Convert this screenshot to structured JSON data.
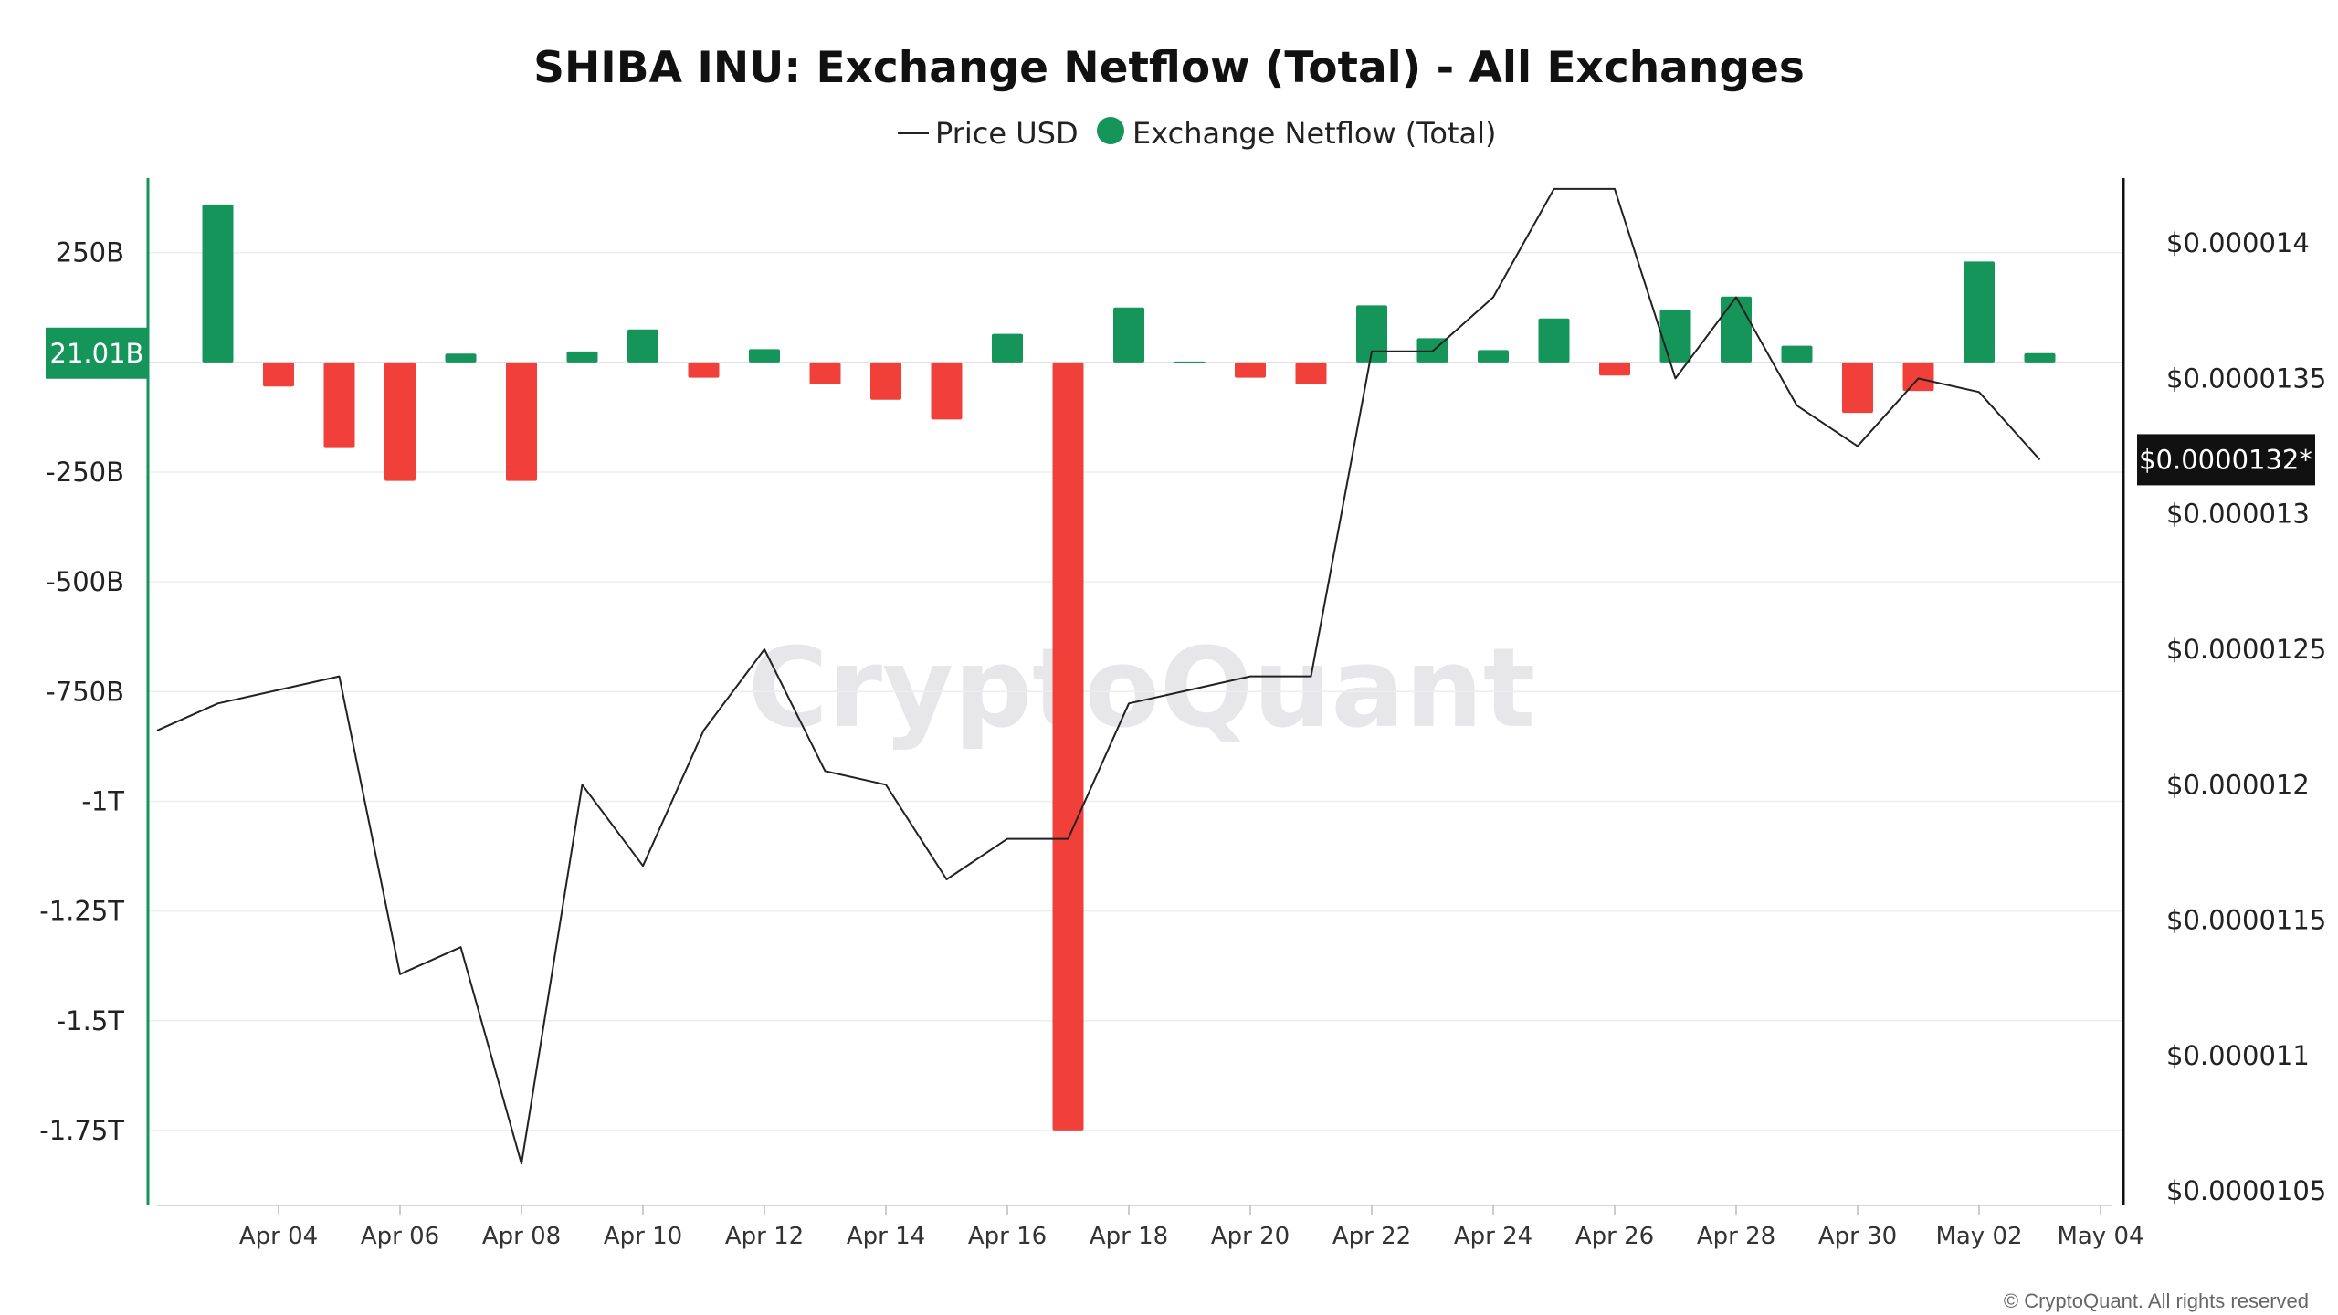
{
  "page": {
    "title": "SHIBA INU: Exchange Netflow (Total) - All Exchanges",
    "watermark": "CryptoQuant",
    "copyright": "© CryptoQuant. All rights reserved"
  },
  "legend": {
    "price_label": "Price USD",
    "netflow_label": "Exchange Netflow (Total)"
  },
  "colors": {
    "positive": "#16955a",
    "negative": "#f1403a",
    "price_line": "#222222",
    "left_axis": "#16955a",
    "right_axis": "#111111",
    "grid": "#eeeeee",
    "current_badge": "#111111"
  },
  "badges": {
    "current_netflow": "21.01B",
    "current_price": "$0.0000132*"
  },
  "chart_data": {
    "type": "bar",
    "title": "SHIBA INU: Exchange Netflow (Total) - All Exchanges",
    "grid": true,
    "legend_position": "top-center",
    "x": [
      "2024-04-03",
      "2024-04-04",
      "2024-04-05",
      "2024-04-06",
      "2024-04-07",
      "2024-04-08",
      "2024-04-09",
      "2024-04-10",
      "2024-04-11",
      "2024-04-12",
      "2024-04-13",
      "2024-04-14",
      "2024-04-15",
      "2024-04-16",
      "2024-04-17",
      "2024-04-18",
      "2024-04-19",
      "2024-04-20",
      "2024-04-21",
      "2024-04-22",
      "2024-04-23",
      "2024-04-24",
      "2024-04-25",
      "2024-04-26",
      "2024-04-27",
      "2024-04-28",
      "2024-04-29",
      "2024-04-30",
      "2024-05-01",
      "2024-05-02",
      "2024-05-03"
    ],
    "x_tick_labels": [
      "Apr 04",
      "Apr 06",
      "Apr 08",
      "Apr 10",
      "Apr 12",
      "Apr 14",
      "Apr 16",
      "Apr 18",
      "Apr 20",
      "Apr 22",
      "Apr 24",
      "Apr 26",
      "Apr 28",
      "Apr 30",
      "May 02",
      "May 04"
    ],
    "x_tick_dates": [
      "2024-04-04",
      "2024-04-06",
      "2024-04-08",
      "2024-04-10",
      "2024-04-12",
      "2024-04-14",
      "2024-04-16",
      "2024-04-18",
      "2024-04-20",
      "2024-04-22",
      "2024-04-24",
      "2024-04-26",
      "2024-04-28",
      "2024-04-30",
      "2024-05-02",
      "2024-05-04"
    ],
    "x_range": [
      "2024-04-02",
      "2024-05-04"
    ],
    "left_axis": {
      "ylim": [
        -1900000000000.0,
        420000000000.0
      ],
      "ticks": [
        250000000000.0,
        -250000000000.0,
        -500000000000.0,
        -750000000000.0,
        -1000000000000.0,
        -1250000000000.0,
        -1500000000000.0,
        -1750000000000.0
      ],
      "tick_labels": [
        "250B",
        "-250B",
        "-500B",
        "-750B",
        "-1T",
        "-1.25T",
        "-1.5T",
        "-1.75T"
      ]
    },
    "right_axis": {
      "ylim": [
        1.048e-05,
        1.424e-05
      ],
      "ticks": [
        1.4e-05,
        1.35e-05,
        1.3e-05,
        1.25e-05,
        1.2e-05,
        1.15e-05,
        1.1e-05,
        1.05e-05
      ],
      "tick_labels": [
        "$0.000014",
        "$0.0000135",
        "$0.000013",
        "$0.0000125",
        "$0.000012",
        "$0.0000115",
        "$0.000011",
        "$0.0000105"
      ]
    },
    "series": [
      {
        "name": "Exchange Netflow (Total)",
        "type": "bar",
        "axis": "left",
        "values": [
          360000000000.0,
          -55000000000.0,
          -195000000000.0,
          -270000000000.0,
          20000000000.0,
          -270000000000.0,
          25000000000.0,
          75000000000.0,
          -35000000000.0,
          30000000000.0,
          -50000000000.0,
          -85000000000.0,
          -130000000000.0,
          65000000000.0,
          -1750000000000.0,
          125000000000.0,
          2000000000.0,
          -35000000000.0,
          -50000000000.0,
          130000000000.0,
          55000000000.0,
          28000000000.0,
          100000000000.0,
          -30000000000.0,
          120000000000.0,
          150000000000.0,
          38000000000.0,
          -115000000000.0,
          -65000000000.0,
          230000000000.0,
          21000000000.0
        ]
      },
      {
        "name": "Price USD",
        "type": "line",
        "axis": "right",
        "x": [
          "2024-04-02",
          "2024-04-03",
          "2024-04-04",
          "2024-04-05",
          "2024-04-06",
          "2024-04-07",
          "2024-04-08",
          "2024-04-09",
          "2024-04-10",
          "2024-04-11",
          "2024-04-12",
          "2024-04-13",
          "2024-04-14",
          "2024-04-15",
          "2024-04-16",
          "2024-04-17",
          "2024-04-18",
          "2024-04-19",
          "2024-04-20",
          "2024-04-21",
          "2024-04-22",
          "2024-04-23",
          "2024-04-24",
          "2024-04-25",
          "2024-04-26",
          "2024-04-27",
          "2024-04-28",
          "2024-04-29",
          "2024-04-30",
          "2024-05-01",
          "2024-05-02",
          "2024-05-03"
        ],
        "values": [
          1.22e-05,
          1.23e-05,
          1.235e-05,
          1.24e-05,
          1.13e-05,
          1.14e-05,
          1.06e-05,
          1.2e-05,
          1.17e-05,
          1.22e-05,
          1.25e-05,
          1.205e-05,
          1.2e-05,
          1.165e-05,
          1.18e-05,
          1.18e-05,
          1.23e-05,
          1.235e-05,
          1.24e-05,
          1.24e-05,
          1.36e-05,
          1.36e-05,
          1.38e-05,
          1.42e-05,
          1.42e-05,
          1.35e-05,
          1.38e-05,
          1.34e-05,
          1.325e-05,
          1.35e-05,
          1.345e-05,
          1.32e-05
        ]
      }
    ]
  }
}
